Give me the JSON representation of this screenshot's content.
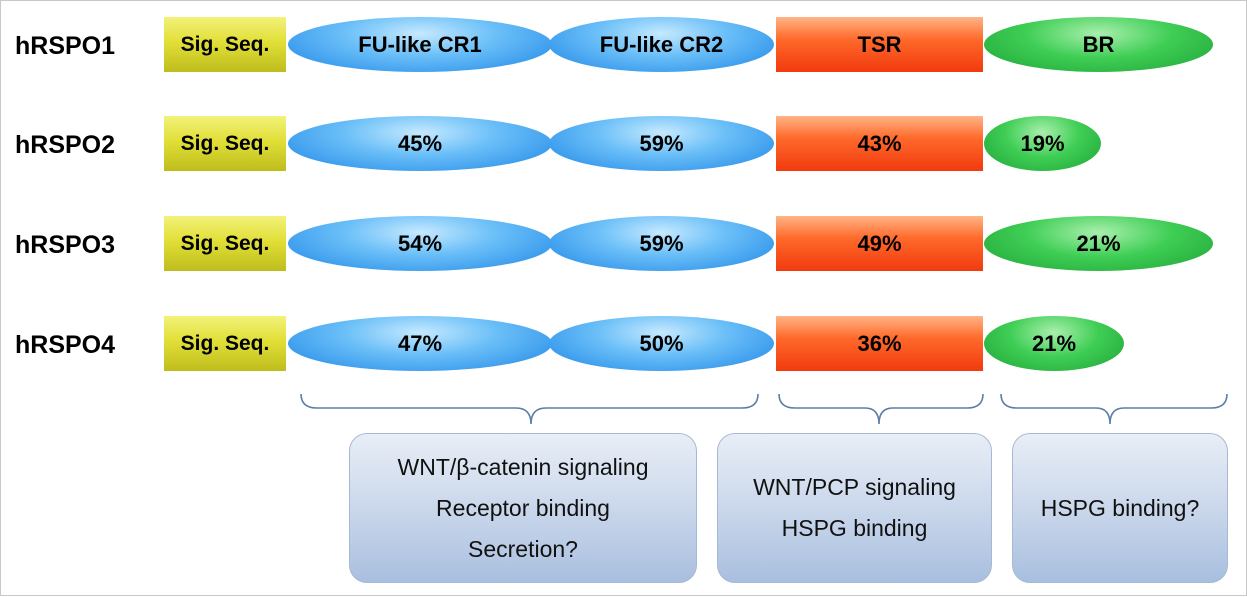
{
  "rows": [
    {
      "label": "hRSPO1",
      "sig": "Sig. Seq.",
      "cr1": "FU-like CR1",
      "cr2": "FU-like CR2",
      "tsr": "TSR",
      "br": "BR"
    },
    {
      "label": "hRSPO2",
      "sig": "Sig. Seq.",
      "cr1": "45%",
      "cr2": "59%",
      "tsr": "43%",
      "br": "19%"
    },
    {
      "label": "hRSPO3",
      "sig": "Sig. Seq.",
      "cr1": "54%",
      "cr2": "59%",
      "tsr": "49%",
      "br": "21%"
    },
    {
      "label": "hRSPO4",
      "sig": "Sig. Seq.",
      "cr1": "47%",
      "cr2": "50%",
      "tsr": "36%",
      "br": "21%"
    }
  ],
  "functions": {
    "fu": [
      "WNT/β-catenin signaling",
      "Receptor binding",
      "Secretion?"
    ],
    "tsr": [
      "WNT/PCP signaling",
      "HSPG binding"
    ],
    "br": [
      "HSPG binding?"
    ]
  },
  "colors": {
    "signal_sequence": "#e1df37",
    "furin_like": "#4aa8f2",
    "tsr": "#ff5a1f",
    "basic_region": "#33c24a",
    "function_box": "#c7d5ea"
  }
}
